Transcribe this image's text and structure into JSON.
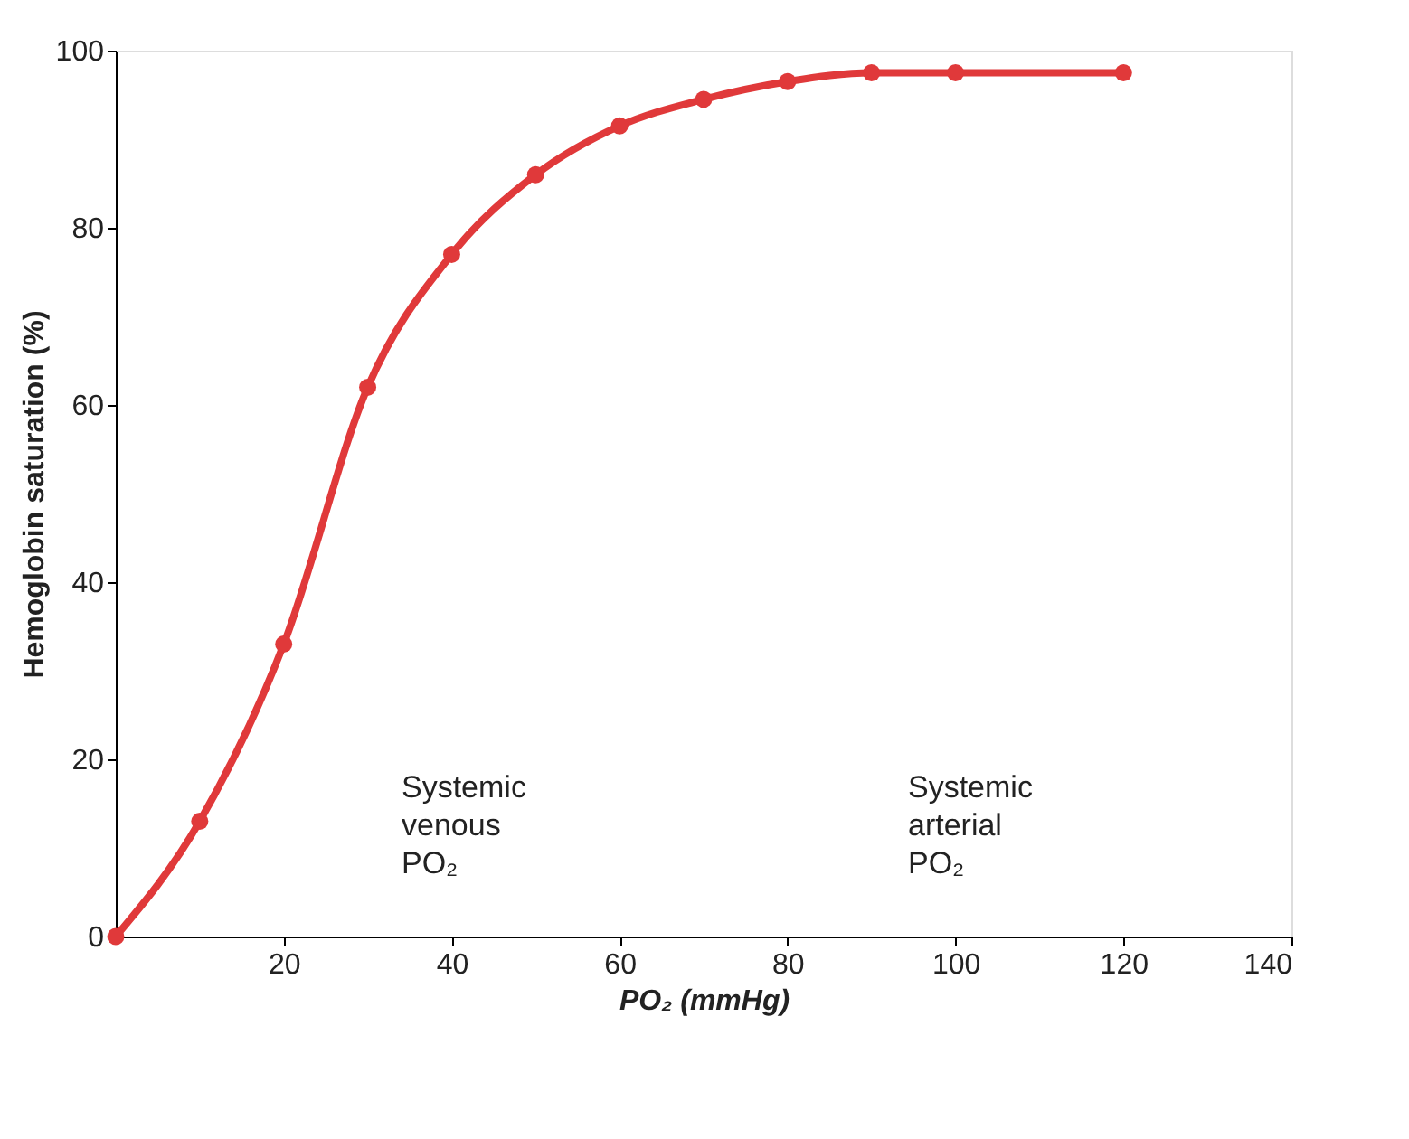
{
  "chart_data": {
    "type": "line",
    "xlabel": "PO₂ (mmHg)",
    "ylabel": "Hemoglobin saturation (%)",
    "x": [
      0,
      10,
      20,
      30,
      40,
      50,
      60,
      70,
      80,
      90,
      100,
      120
    ],
    "series": [
      {
        "color": "#e0393a",
        "values": [
          0,
          13,
          33,
          62,
          77,
          86,
          91.5,
          94.5,
          96.5,
          97.5,
          97.5,
          97.5
        ]
      }
    ],
    "xlim": [
      0,
      140
    ],
    "ylim": [
      0,
      100
    ],
    "xticks": [
      20,
      40,
      60,
      80,
      100,
      120,
      140
    ],
    "yticks": [
      0,
      20,
      40,
      60,
      80,
      100
    ],
    "marker": "circle",
    "line_style": "solid",
    "grid": false,
    "annotations": [
      "Systemic venous PO₂",
      "Systemic arterial PO₂"
    ]
  }
}
